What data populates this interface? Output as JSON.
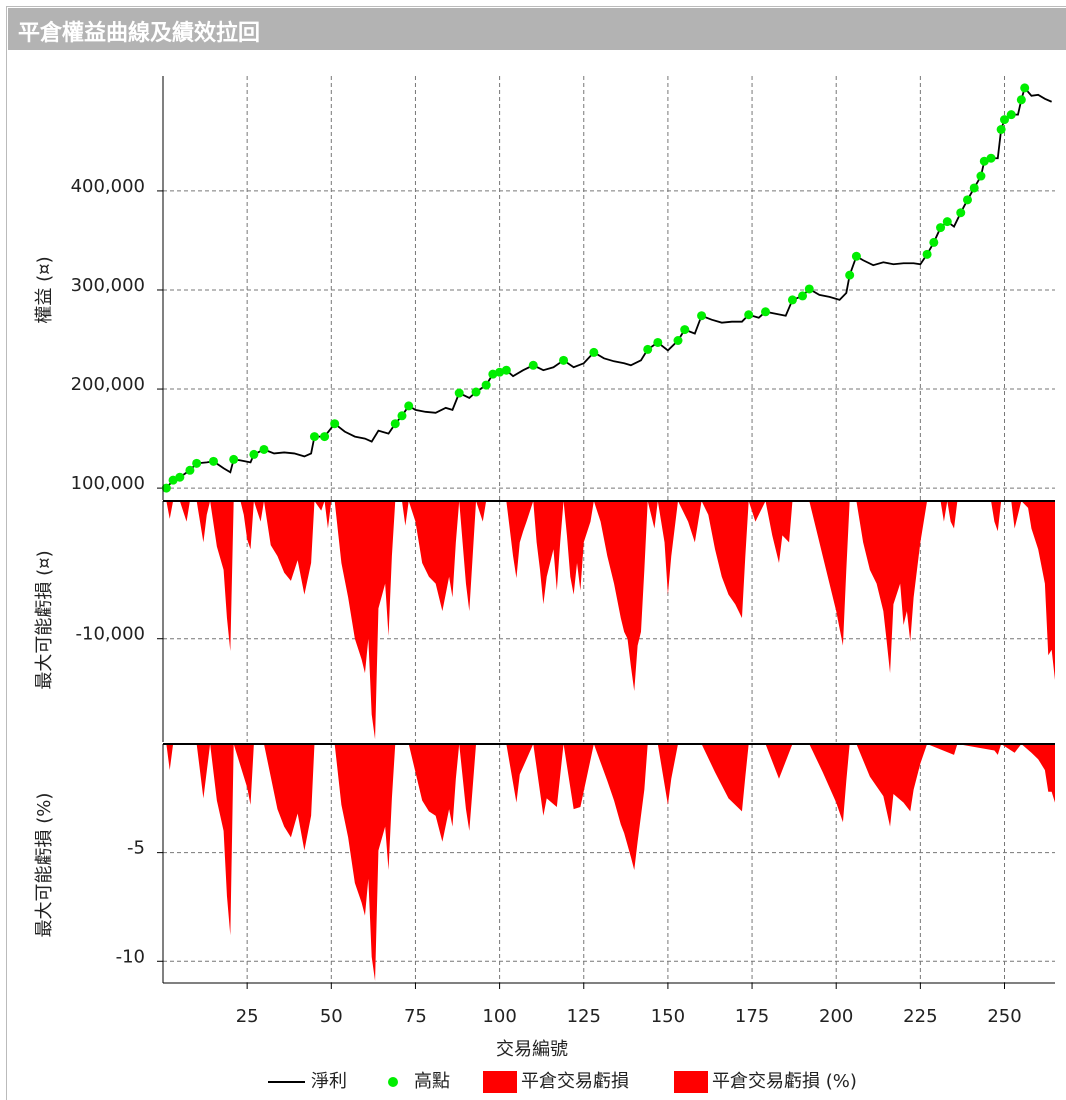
{
  "title": "平倉權益曲線及績效拉回",
  "chart_data": [
    {
      "type": "line",
      "ylabel": "權益 (¤)",
      "xlim": [
        0,
        265
      ],
      "ylim": [
        88000,
        516000
      ],
      "yticks": [
        {
          "value": 100000,
          "label": "100,000"
        },
        {
          "value": 200000,
          "label": "200,000"
        },
        {
          "value": 300000,
          "label": "300,000"
        },
        {
          "value": 400000,
          "label": "400,000"
        }
      ],
      "grid": true,
      "series": [
        {
          "name": "淨利",
          "type": "line",
          "color": "#000000",
          "x": [
            1,
            3,
            5,
            8,
            10,
            13,
            15,
            18,
            20,
            21,
            23,
            26,
            27,
            30,
            33,
            36,
            39,
            42,
            44,
            45,
            48,
            51,
            54,
            57,
            60,
            62,
            64,
            67,
            69,
            71,
            73,
            75,
            78,
            81,
            84,
            86,
            88,
            91,
            93,
            96,
            98,
            100,
            102,
            104,
            107,
            110,
            113,
            116,
            119,
            122,
            125,
            128,
            131,
            134,
            137,
            139,
            142,
            144,
            147,
            150,
            153,
            155,
            158,
            160,
            163,
            166,
            169,
            172,
            174,
            177,
            179,
            182,
            185,
            187,
            190,
            192,
            195,
            198,
            201,
            203,
            204,
            206,
            208,
            211,
            214,
            217,
            220,
            223,
            225,
            227,
            229,
            231,
            233,
            235,
            237,
            239,
            241,
            243,
            244,
            246,
            248,
            249,
            250,
            252,
            254,
            255,
            256,
            258,
            260,
            262,
            264
          ],
          "values": [
            100000,
            108000,
            111000,
            118000,
            125000,
            126000,
            127000,
            120000,
            116000,
            129000,
            128000,
            126000,
            134000,
            139000,
            135000,
            136000,
            135000,
            132000,
            135000,
            152000,
            152000,
            165000,
            157000,
            152000,
            150000,
            147000,
            158000,
            155000,
            165000,
            173000,
            183000,
            179000,
            177000,
            176000,
            181000,
            179000,
            196000,
            191000,
            197000,
            204000,
            215000,
            217000,
            219000,
            213000,
            219000,
            224000,
            219000,
            222000,
            229000,
            222000,
            226000,
            237000,
            231000,
            228000,
            226000,
            224000,
            229000,
            240000,
            247000,
            239000,
            249000,
            260000,
            256000,
            274000,
            270000,
            267000,
            268000,
            268000,
            275000,
            272000,
            278000,
            276000,
            274000,
            290000,
            294000,
            301000,
            295000,
            293000,
            290000,
            297000,
            315000,
            334000,
            330000,
            325000,
            328000,
            326000,
            327000,
            327000,
            326000,
            336000,
            348000,
            363000,
            369000,
            364000,
            378000,
            391000,
            403000,
            415000,
            430000,
            433000,
            433000,
            462000,
            472000,
            477000,
            477000,
            492000,
            504000,
            496000,
            497000,
            493000,
            490000
          ]
        },
        {
          "name": "高點",
          "type": "scatter",
          "color": "#00ee00",
          "x": [
            1,
            3,
            5,
            8,
            10,
            15,
            21,
            27,
            30,
            45,
            48,
            51,
            69,
            71,
            73,
            88,
            93,
            96,
            98,
            100,
            102,
            110,
            119,
            128,
            144,
            147,
            153,
            155,
            160,
            174,
            179,
            187,
            190,
            192,
            204,
            206,
            227,
            229,
            231,
            233,
            237,
            239,
            241,
            243,
            244,
            246,
            249,
            250,
            252,
            255,
            256
          ],
          "values": [
            100000,
            108000,
            111000,
            118000,
            125000,
            127000,
            129000,
            134000,
            139000,
            152000,
            152000,
            165000,
            165000,
            173000,
            183000,
            196000,
            197000,
            204000,
            215000,
            217000,
            219000,
            224000,
            229000,
            237000,
            240000,
            247000,
            249000,
            260000,
            274000,
            275000,
            278000,
            290000,
            294000,
            301000,
            315000,
            334000,
            336000,
            348000,
            363000,
            369000,
            378000,
            391000,
            403000,
            415000,
            430000,
            433000,
            462000,
            472000,
            477000,
            492000,
            504000
          ]
        }
      ]
    },
    {
      "type": "area",
      "ylabel": "最大可能虧損 (¤)",
      "xlim": [
        0,
        265
      ],
      "ylim": [
        -17500,
        0
      ],
      "yticks": [
        {
          "value": -10000,
          "label": "-10,000"
        }
      ],
      "grid": true,
      "series": [
        {
          "name": "平倉交易虧損",
          "color": "#ff0000",
          "x": [
            1,
            2,
            3,
            5,
            7,
            8,
            10,
            12,
            13,
            14,
            16,
            18,
            19,
            20,
            21,
            23,
            24,
            25,
            26,
            27,
            29,
            30,
            32,
            34,
            36,
            38,
            40,
            42,
            44,
            45,
            47,
            48,
            49,
            50,
            51,
            53,
            55,
            57,
            59,
            60,
            61,
            62,
            63,
            64,
            66,
            67,
            68,
            69,
            71,
            72,
            73,
            75,
            77,
            79,
            81,
            83,
            85,
            86,
            87,
            88,
            89,
            90,
            91,
            92,
            93,
            95,
            96,
            102,
            103,
            104,
            105,
            106,
            107,
            108,
            110,
            111,
            112,
            113,
            114,
            116,
            117,
            118,
            119,
            120,
            121,
            122,
            123,
            124,
            125,
            127,
            128,
            130,
            132,
            134,
            136,
            137,
            138,
            139,
            140,
            141,
            142,
            143,
            144,
            146,
            147,
            149,
            150,
            151,
            153,
            156,
            158,
            159,
            160,
            162,
            164,
            166,
            168,
            170,
            172,
            173,
            174,
            176,
            177,
            179,
            181,
            183,
            184,
            186,
            187,
            192,
            194,
            196,
            198,
            200,
            202,
            203,
            204,
            206,
            208,
            210,
            212,
            214,
            215,
            216,
            217,
            219,
            220,
            221,
            222,
            223,
            225,
            227,
            231,
            232,
            233,
            234,
            235,
            236,
            246,
            247,
            248,
            249,
            252,
            253,
            254,
            255,
            257,
            258,
            260,
            262,
            263,
            264,
            265
          ],
          "values": [
            0,
            -1300,
            0,
            0,
            -1500,
            0,
            0,
            -3000,
            -1000,
            0,
            -3300,
            -5000,
            -8500,
            -10900,
            0,
            0,
            -1000,
            -2800,
            -3500,
            0,
            -1500,
            0,
            -3200,
            -4000,
            -5200,
            -5800,
            -4300,
            -6800,
            -4500,
            0,
            -700,
            0,
            -2000,
            0,
            0,
            -4500,
            -7000,
            -10000,
            -11500,
            -12500,
            -10000,
            -15500,
            -17300,
            -7800,
            -6000,
            -9800,
            -4000,
            0,
            0,
            -1800,
            0,
            -1500,
            -4500,
            -5500,
            -6000,
            -8000,
            -5500,
            -7000,
            -3000,
            0,
            -3000,
            -6000,
            -8000,
            -4000,
            0,
            -1500,
            0,
            0,
            -2000,
            -4000,
            -5600,
            -3000,
            -2200,
            -1500,
            0,
            -3000,
            -5000,
            -7500,
            -5500,
            -3500,
            -6500,
            -3000,
            0,
            -2500,
            -5500,
            -6800,
            -4500,
            -6500,
            -3000,
            -1500,
            0,
            -1500,
            -4000,
            -6000,
            -8500,
            -9500,
            -10000,
            -12000,
            -13800,
            -10500,
            -9500,
            -5000,
            0,
            -2000,
            0,
            -3000,
            -6800,
            -4000,
            0,
            -1500,
            -3000,
            -1500,
            0,
            -1000,
            -3500,
            -5500,
            -6800,
            -7500,
            -8500,
            -4000,
            0,
            -1500,
            -1000,
            0,
            -2500,
            -4500,
            -2500,
            -3000,
            0,
            0,
            -2000,
            -4000,
            -6000,
            -8000,
            -10500,
            -5000,
            0,
            0,
            -3000,
            -5000,
            -6000,
            -8000,
            -10200,
            -12500,
            -7500,
            -6000,
            -9000,
            -8000,
            -10200,
            -7000,
            -3000,
            0,
            0,
            -1500,
            0,
            -1500,
            -2000,
            0,
            0,
            -1500,
            -2200,
            0,
            0,
            -2000,
            -1000,
            0,
            -500,
            -2000,
            -3500,
            -6000,
            -11200,
            -10800,
            -13000
          ]
        }
      ]
    },
    {
      "type": "area",
      "ylabel": "最大可能虧損 (%)",
      "xlabel": "交易編號",
      "xlim": [
        0,
        265
      ],
      "ylim": [
        -11,
        0
      ],
      "yticks": [
        -5,
        -10
      ],
      "xticks": [
        25,
        50,
        75,
        100,
        125,
        150,
        175,
        200,
        225,
        250
      ],
      "grid": true,
      "series": [
        {
          "name": "平倉交易虧損 (%)",
          "color": "#ff0000",
          "x": [
            1,
            2,
            3,
            8,
            10,
            12,
            14,
            16,
            18,
            19,
            20,
            21,
            25,
            26,
            27,
            30,
            34,
            36,
            38,
            40,
            42,
            44,
            45,
            50,
            51,
            53,
            55,
            57,
            59,
            60,
            61,
            62,
            63,
            64,
            66,
            67,
            68,
            69,
            73,
            77,
            79,
            81,
            83,
            85,
            86,
            87,
            88,
            90,
            91,
            92,
            93,
            102,
            105,
            106,
            110,
            113,
            114,
            117,
            119,
            122,
            124,
            128,
            132,
            134,
            136,
            137,
            139,
            140,
            141,
            143,
            144,
            147,
            150,
            151,
            153,
            160,
            164,
            168,
            170,
            172,
            173,
            174,
            179,
            183,
            187,
            192,
            196,
            200,
            202,
            203,
            204,
            206,
            210,
            214,
            215,
            216,
            217,
            220,
            222,
            223,
            225,
            227,
            235,
            236,
            247,
            248,
            249,
            253,
            255,
            258,
            260,
            262,
            263,
            264,
            265
          ],
          "values": [
            0,
            -1.2,
            0,
            0,
            0,
            -2.5,
            0,
            -2.6,
            -4,
            -7,
            -8.8,
            0,
            -2,
            -2.8,
            0,
            0,
            -3,
            -3.8,
            -4.3,
            -3.2,
            -4.9,
            -3.3,
            0,
            0,
            0,
            -2.8,
            -4.3,
            -6.4,
            -7.3,
            -7.9,
            -6.2,
            -9.8,
            -10.9,
            -4.9,
            -3.8,
            -5.8,
            -2.5,
            0,
            0,
            -2.6,
            -3.1,
            -3.3,
            -4.5,
            -3,
            -3.8,
            -1.6,
            0,
            -3,
            -4,
            -2,
            0,
            0,
            -2.7,
            -1.4,
            0,
            -3.3,
            -2.5,
            -2.9,
            0,
            -3,
            -2.9,
            0,
            -1.7,
            -2.6,
            -3.7,
            -4.1,
            -5.2,
            -5.8,
            -4.5,
            -2.1,
            0,
            0,
            -2.8,
            -1.6,
            0,
            0,
            -1.3,
            -2.5,
            -2.8,
            -3.1,
            -1.5,
            0,
            0,
            -1.6,
            0,
            0,
            -1.3,
            -2.7,
            -3.6,
            -1.7,
            0,
            0,
            -1.5,
            -2.4,
            -3.1,
            -3.8,
            -2.3,
            -2.7,
            -3.1,
            -2.1,
            -0.9,
            0,
            -0.5,
            0,
            -0.3,
            -0.5,
            0,
            -0.4,
            0,
            -0.4,
            -0.7,
            -1.2,
            -2.2,
            -2.2,
            -2.7
          ]
        }
      ]
    }
  ]
}
